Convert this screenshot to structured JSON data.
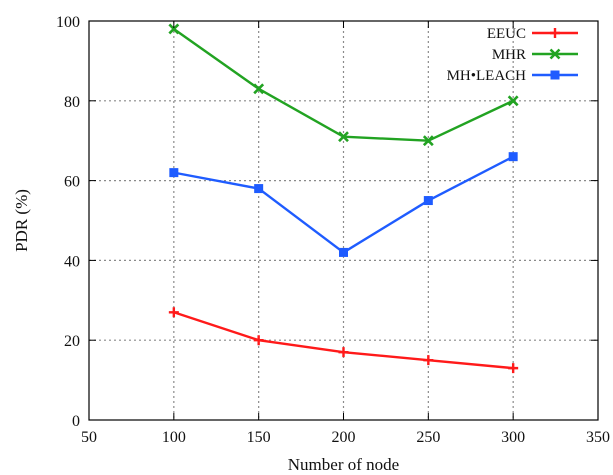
{
  "chart_data": {
    "type": "line",
    "title": "",
    "xlabel": "Number of node",
    "ylabel": "PDR (%)",
    "xlim": [
      50,
      350
    ],
    "ylim": [
      0,
      100
    ],
    "xticks": [
      50,
      100,
      150,
      200,
      250,
      300,
      350
    ],
    "yticks": [
      0,
      20,
      40,
      60,
      80,
      100
    ],
    "grid": true,
    "legend_position": "top-right",
    "x": [
      100,
      150,
      200,
      250,
      300
    ],
    "series": [
      {
        "name": "EEUC",
        "color": "#ff1a1a",
        "marker": "plus",
        "values": [
          27,
          20,
          17,
          15,
          13
        ]
      },
      {
        "name": "MHR",
        "color": "#22a322",
        "marker": "cross",
        "values": [
          98,
          83,
          71,
          70,
          80
        ]
      },
      {
        "name": "MH•LEACH",
        "color": "#1f5cff",
        "marker": "square",
        "values": [
          62,
          58,
          42,
          55,
          66
        ]
      }
    ]
  }
}
